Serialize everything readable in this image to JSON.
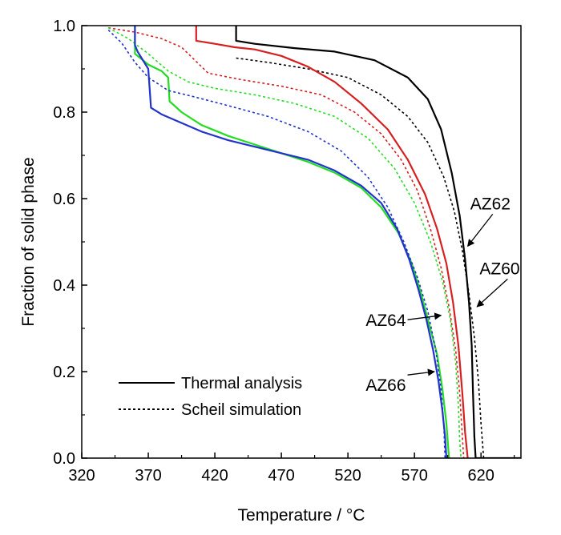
{
  "chart_data": {
    "type": "line",
    "xlabel": "Temperature / °C",
    "ylabel": "Fraction of solid phase",
    "xlim": [
      320,
      650
    ],
    "ylim": [
      0,
      1
    ],
    "xticks": [
      320,
      370,
      420,
      470,
      520,
      570,
      620
    ],
    "xtick_labels": [
      "320",
      "370",
      "420",
      "470",
      "520",
      "570",
      "620"
    ],
    "yticks": [
      0,
      0.2,
      0.4,
      0.6,
      0.8,
      1.0
    ],
    "ytick_labels": [
      "0.0",
      "0.2",
      "0.4",
      "0.6",
      "0.8",
      "1.0"
    ],
    "legend": {
      "placement": "bottom-left",
      "entries": [
        {
          "label": "Thermal analysis",
          "style": "solid"
        },
        {
          "label": "Scheil simulation",
          "style": "dotted"
        }
      ]
    },
    "annotations": [
      {
        "text": "AZ62",
        "x": 630,
        "y": 0.59,
        "arrow_to": [
          610,
          0.49
        ]
      },
      {
        "text": "AZ60",
        "x": 640,
        "y": 0.44,
        "arrow_to": [
          617,
          0.35
        ]
      },
      {
        "text": "AZ64",
        "x": 560,
        "y": 0.32,
        "arrow_to": [
          590,
          0.33
        ]
      },
      {
        "text": "AZ66",
        "x": 560,
        "y": 0.17,
        "arrow_to": [
          585,
          0.2
        ]
      }
    ],
    "series": [
      {
        "alloy": "AZ60",
        "method": "thermal",
        "color": "#000000",
        "style": "solid",
        "points": [
          [
            436,
            1.0
          ],
          [
            436,
            0.965
          ],
          [
            450,
            0.958
          ],
          [
            480,
            0.948
          ],
          [
            510,
            0.94
          ],
          [
            540,
            0.92
          ],
          [
            565,
            0.88
          ],
          [
            580,
            0.83
          ],
          [
            590,
            0.76
          ],
          [
            598,
            0.66
          ],
          [
            604,
            0.56
          ],
          [
            608,
            0.46
          ],
          [
            611,
            0.36
          ],
          [
            613,
            0.26
          ],
          [
            614,
            0.15
          ],
          [
            615,
            0.05
          ],
          [
            616,
            0.0
          ],
          [
            650,
            0.0
          ]
        ]
      },
      {
        "alloy": "AZ60",
        "method": "scheil",
        "color": "#000000",
        "style": "dotted",
        "points": [
          [
            436,
            0.925
          ],
          [
            460,
            0.915
          ],
          [
            490,
            0.9
          ],
          [
            520,
            0.88
          ],
          [
            545,
            0.84
          ],
          [
            565,
            0.79
          ],
          [
            580,
            0.73
          ],
          [
            592,
            0.65
          ],
          [
            600,
            0.57
          ],
          [
            606,
            0.48
          ],
          [
            611,
            0.38
          ],
          [
            615,
            0.28
          ],
          [
            618,
            0.18
          ],
          [
            620,
            0.08
          ],
          [
            622,
            0.0
          ]
        ]
      },
      {
        "alloy": "AZ62",
        "method": "thermal",
        "color": "#d62020",
        "style": "solid",
        "points": [
          [
            406,
            1.0
          ],
          [
            406,
            0.965
          ],
          [
            420,
            0.958
          ],
          [
            435,
            0.95
          ],
          [
            450,
            0.945
          ],
          [
            470,
            0.93
          ],
          [
            490,
            0.905
          ],
          [
            510,
            0.87
          ],
          [
            530,
            0.82
          ],
          [
            550,
            0.76
          ],
          [
            565,
            0.69
          ],
          [
            578,
            0.61
          ],
          [
            587,
            0.53
          ],
          [
            594,
            0.45
          ],
          [
            599,
            0.36
          ],
          [
            603,
            0.26
          ],
          [
            606,
            0.15
          ],
          [
            608,
            0.06
          ],
          [
            610,
            0.0
          ]
        ]
      },
      {
        "alloy": "AZ62",
        "method": "scheil",
        "color": "#d62020",
        "style": "dotted",
        "points": [
          [
            340,
            0.995
          ],
          [
            360,
            0.985
          ],
          [
            380,
            0.97
          ],
          [
            395,
            0.95
          ],
          [
            405,
            0.92
          ],
          [
            415,
            0.89
          ],
          [
            440,
            0.875
          ],
          [
            470,
            0.86
          ],
          [
            500,
            0.84
          ],
          [
            525,
            0.8
          ],
          [
            545,
            0.75
          ],
          [
            560,
            0.69
          ],
          [
            572,
            0.62
          ],
          [
            582,
            0.53
          ],
          [
            590,
            0.44
          ],
          [
            596,
            0.35
          ],
          [
            601,
            0.25
          ],
          [
            604,
            0.15
          ],
          [
            606,
            0.05
          ],
          [
            607,
            0.0
          ]
        ]
      },
      {
        "alloy": "AZ64",
        "method": "thermal",
        "color": "#22dd22",
        "style": "solid",
        "points": [
          [
            360,
            1.0
          ],
          [
            360,
            0.935
          ],
          [
            370,
            0.91
          ],
          [
            380,
            0.895
          ],
          [
            385,
            0.88
          ],
          [
            386,
            0.825
          ],
          [
            395,
            0.8
          ],
          [
            410,
            0.77
          ],
          [
            430,
            0.745
          ],
          [
            450,
            0.725
          ],
          [
            470,
            0.705
          ],
          [
            490,
            0.685
          ],
          [
            510,
            0.66
          ],
          [
            530,
            0.625
          ],
          [
            545,
            0.58
          ],
          [
            558,
            0.52
          ],
          [
            568,
            0.45
          ],
          [
            575,
            0.38
          ],
          [
            581,
            0.31
          ],
          [
            587,
            0.24
          ],
          [
            591,
            0.16
          ],
          [
            594,
            0.08
          ],
          [
            596,
            0.0
          ]
        ]
      },
      {
        "alloy": "AZ64",
        "method": "scheil",
        "color": "#22dd22",
        "style": "dotted",
        "points": [
          [
            340,
            0.995
          ],
          [
            355,
            0.97
          ],
          [
            370,
            0.935
          ],
          [
            385,
            0.895
          ],
          [
            400,
            0.87
          ],
          [
            420,
            0.855
          ],
          [
            450,
            0.84
          ],
          [
            480,
            0.82
          ],
          [
            510,
            0.79
          ],
          [
            535,
            0.74
          ],
          [
            555,
            0.67
          ],
          [
            570,
            0.59
          ],
          [
            582,
            0.5
          ],
          [
            591,
            0.41
          ],
          [
            597,
            0.32
          ],
          [
            601,
            0.22
          ],
          [
            603,
            0.12
          ],
          [
            604,
            0.04
          ],
          [
            605,
            0.0
          ]
        ]
      },
      {
        "alloy": "AZ66",
        "method": "thermal",
        "color": "#2233cc",
        "style": "solid",
        "points": [
          [
            360,
            1.0
          ],
          [
            360,
            0.955
          ],
          [
            362,
            0.94
          ],
          [
            370,
            0.9
          ],
          [
            372,
            0.81
          ],
          [
            380,
            0.795
          ],
          [
            395,
            0.775
          ],
          [
            410,
            0.755
          ],
          [
            430,
            0.735
          ],
          [
            450,
            0.72
          ],
          [
            470,
            0.705
          ],
          [
            490,
            0.69
          ],
          [
            510,
            0.665
          ],
          [
            530,
            0.63
          ],
          [
            545,
            0.59
          ],
          [
            557,
            0.53
          ],
          [
            566,
            0.46
          ],
          [
            573,
            0.39
          ],
          [
            579,
            0.32
          ],
          [
            584,
            0.25
          ],
          [
            588,
            0.18
          ],
          [
            591,
            0.11
          ],
          [
            593,
            0.05
          ],
          [
            594,
            0.0
          ]
        ]
      },
      {
        "alloy": "AZ66",
        "method": "scheil",
        "color": "#2233cc",
        "style": "dotted",
        "points": [
          [
            340,
            0.99
          ],
          [
            350,
            0.96
          ],
          [
            360,
            0.915
          ],
          [
            370,
            0.88
          ],
          [
            385,
            0.85
          ],
          [
            405,
            0.835
          ],
          [
            430,
            0.815
          ],
          [
            460,
            0.79
          ],
          [
            490,
            0.755
          ],
          [
            515,
            0.71
          ],
          [
            535,
            0.65
          ],
          [
            550,
            0.58
          ],
          [
            562,
            0.5
          ],
          [
            572,
            0.42
          ],
          [
            580,
            0.34
          ],
          [
            586,
            0.25
          ],
          [
            590,
            0.16
          ],
          [
            592,
            0.08
          ],
          [
            593,
            0.0
          ]
        ]
      }
    ]
  }
}
